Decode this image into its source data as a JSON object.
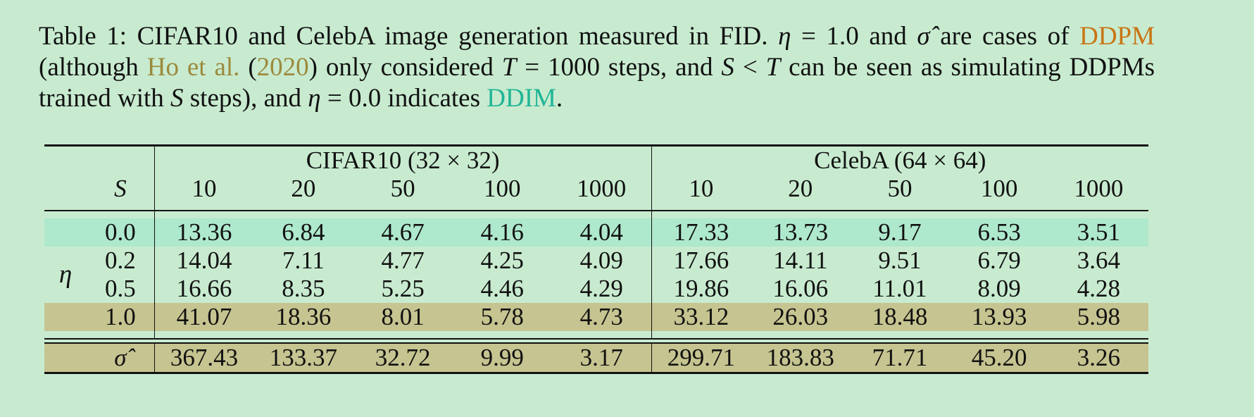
{
  "caption": {
    "label": "Table 1:",
    "part1": " CIFAR10 and CelebA image generation measured in FID. ",
    "eta_sym": "η",
    "part2": " = 1.0 and ",
    "sigma_sym": "σ̂",
    "part3": " are cases of ",
    "ddpm_link": "DDPM",
    "part4": " (although ",
    "cite_authors": "Ho et al.",
    "part5": " (",
    "cite_year": "2020",
    "part6": ") only considered ",
    "T_sym": "T",
    "part7": " = 1000 steps, and ",
    "S_sym": "S",
    "part8": " < ",
    "T_sym2": "T",
    "part9": " can be seen as simulating DDPMs trained with ",
    "S_sym2": "S",
    "part10": " steps), and ",
    "eta_sym2": "η",
    "part11": " = 0.0 indicates ",
    "ddim_link": "DDIM",
    "part12": "."
  },
  "table": {
    "group_cifar": "CIFAR10 (32 × 32)",
    "group_celeba": "CelebA (64 × 64)",
    "s_label": "S",
    "eta_label": "η",
    "sigma_label": "σ̂",
    "steps": [
      "10",
      "20",
      "50",
      "100",
      "1000"
    ],
    "rows": [
      {
        "eta": "0.0",
        "cifar": [
          "13.36",
          "6.84",
          "4.67",
          "4.16",
          "4.04"
        ],
        "celeba": [
          "17.33",
          "13.73",
          "9.17",
          "6.53",
          "3.51"
        ]
      },
      {
        "eta": "0.2",
        "cifar": [
          "14.04",
          "7.11",
          "4.77",
          "4.25",
          "4.09"
        ],
        "celeba": [
          "17.66",
          "14.11",
          "9.51",
          "6.79",
          "3.64"
        ]
      },
      {
        "eta": "0.5",
        "cifar": [
          "16.66",
          "8.35",
          "5.25",
          "4.46",
          "4.29"
        ],
        "celeba": [
          "19.86",
          "16.06",
          "11.01",
          "8.09",
          "4.28"
        ]
      },
      {
        "eta": "1.0",
        "cifar": [
          "41.07",
          "18.36",
          "8.01",
          "5.78",
          "4.73"
        ],
        "celeba": [
          "33.12",
          "26.03",
          "18.48",
          "13.93",
          "5.98"
        ]
      }
    ],
    "sigma_row": {
      "cifar": [
        "367.43",
        "133.37",
        "32.72",
        "9.99",
        "3.17"
      ],
      "celeba": [
        "299.71",
        "183.83",
        "71.71",
        "45.20",
        "3.26"
      ]
    },
    "colors": {
      "background": "#c8ebd0",
      "ddim_highlight": "#aee8cd",
      "ddpm_highlight": "#c6c490",
      "ddpm_text": "#c87514",
      "cite_text": "#9b8a3c",
      "ddim_text": "#20b596"
    }
  }
}
